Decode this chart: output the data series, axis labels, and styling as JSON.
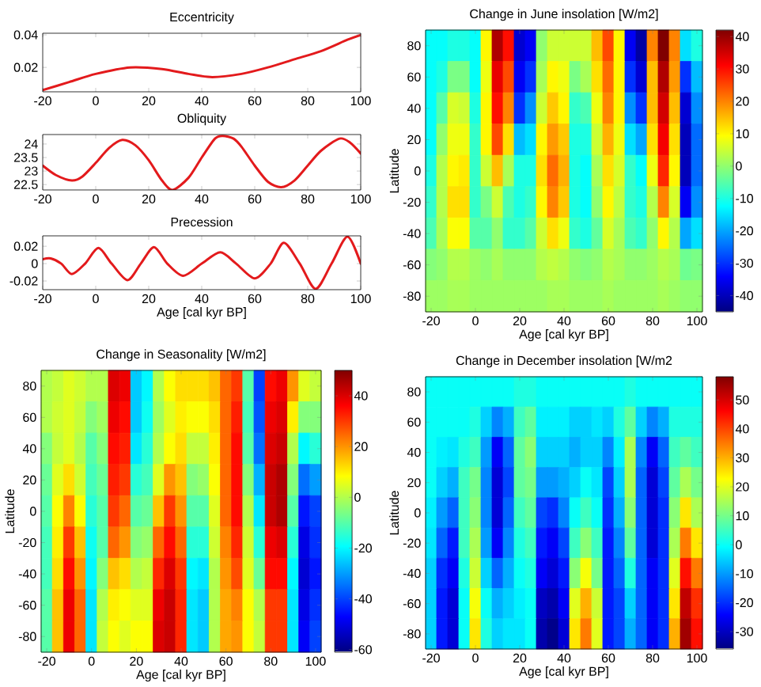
{
  "chart_data": [
    {
      "type": "line",
      "title": "Eccentricity",
      "x": [
        -20,
        -10,
        0,
        13,
        25,
        35,
        44,
        55,
        65,
        75,
        85,
        95,
        100
      ],
      "series": [
        {
          "color": "#e31a1c",
          "values": [
            0.006,
            0.011,
            0.016,
            0.02,
            0.019,
            0.016,
            0.014,
            0.016,
            0.02,
            0.025,
            0.03,
            0.037,
            0.04
          ]
        }
      ],
      "xlim": [
        -20,
        100
      ],
      "xticks": [
        -20,
        0,
        20,
        40,
        60,
        80,
        100
      ],
      "ylim": [
        0.005,
        0.041
      ],
      "yticks": [
        0.02,
        0.04
      ]
    },
    {
      "type": "line",
      "title": "Obliquity",
      "x": [
        -20,
        -15,
        -9,
        -5,
        0,
        5,
        10,
        15,
        20,
        25,
        29,
        35,
        40,
        45,
        48,
        52,
        55,
        60,
        65,
        70,
        75,
        80,
        85,
        92,
        96,
        100
      ],
      "series": [
        {
          "color": "#e31a1c",
          "values": [
            23.2,
            22.85,
            22.65,
            22.8,
            23.3,
            23.85,
            24.15,
            23.95,
            23.4,
            22.65,
            22.3,
            22.75,
            23.5,
            24.2,
            24.3,
            24.2,
            23.9,
            23.2,
            22.6,
            22.4,
            22.65,
            23.2,
            23.75,
            24.2,
            24.05,
            23.65
          ]
        }
      ],
      "xlim": [
        -20,
        100
      ],
      "xticks": [
        -20,
        0,
        20,
        40,
        60,
        80,
        100
      ],
      "ylim": [
        22.3,
        24.35
      ],
      "yticks": [
        22.5,
        23,
        23.5,
        24
      ]
    },
    {
      "type": "line",
      "title": "Precession",
      "xlabel": "Age [cal kyr BP]",
      "x": [
        -20,
        -17,
        -13,
        -9,
        -4,
        1,
        6,
        12,
        17,
        22,
        27,
        33,
        40,
        47,
        53,
        60,
        66,
        71,
        77,
        83,
        89,
        95,
        100
      ],
      "series": [
        {
          "color": "#e31a1c",
          "values": [
            0.005,
            0.006,
            0,
            -0.012,
            0,
            0.018,
            0,
            -0.019,
            0,
            0.019,
            0,
            -0.014,
            0,
            0.013,
            0,
            -0.017,
            0,
            0.024,
            0,
            -0.029,
            0,
            0.031,
            0
          ]
        }
      ],
      "xlim": [
        -20,
        100
      ],
      "xticks": [
        -20,
        0,
        20,
        40,
        60,
        80,
        100
      ],
      "ylim": [
        -0.03,
        0.032
      ],
      "yticks": [
        -0.02,
        0,
        0.02
      ]
    },
    {
      "type": "heatmap",
      "title": "Change in June insolation [W/m2]",
      "xlabel": "Age [cal kyr BP]",
      "ylabel": "Latitude",
      "categories": [
        "-20",
        null,
        null,
        null,
        "0",
        null,
        null,
        null,
        "20",
        null,
        null,
        null,
        "40",
        null,
        null,
        null,
        "60",
        null,
        null,
        null,
        "80",
        null,
        null,
        null,
        "100"
      ],
      "y_categories": [
        "80",
        "60",
        "40",
        "20",
        "0",
        "-20",
        "-40",
        "-60",
        "-80"
      ],
      "clim": [
        -45,
        42
      ],
      "cticks": [
        -40,
        -30,
        -20,
        -10,
        0,
        10,
        20,
        30,
        40
      ],
      "cells": [
        [
          -12,
          -12,
          -10,
          -10,
          -12,
          10,
          38,
          30,
          -38,
          -35,
          0,
          5,
          5,
          5,
          5,
          15,
          25,
          10,
          -35,
          -42,
          20,
          42,
          20,
          -15,
          -10
        ],
        [
          -12,
          -10,
          -2,
          -2,
          -12,
          8,
          33,
          25,
          -35,
          -30,
          2,
          10,
          8,
          -2,
          2,
          12,
          22,
          10,
          -30,
          -38,
          15,
          38,
          18,
          -30,
          -18
        ],
        [
          -12,
          -5,
          6,
          5,
          -10,
          10,
          30,
          20,
          -30,
          -22,
          5,
          14,
          10,
          -8,
          -6,
          8,
          20,
          10,
          -22,
          -30,
          15,
          35,
          15,
          -38,
          -22
        ],
        [
          -12,
          0,
          8,
          8,
          -8,
          10,
          25,
          12,
          -18,
          -15,
          10,
          18,
          14,
          -10,
          -10,
          5,
          16,
          8,
          -15,
          -20,
          12,
          32,
          12,
          -40,
          -25
        ],
        [
          -10,
          3,
          10,
          11,
          -8,
          5,
          15,
          2,
          -10,
          -10,
          12,
          22,
          16,
          -10,
          -12,
          2,
          12,
          6,
          -8,
          -12,
          8,
          28,
          10,
          -40,
          -25
        ],
        [
          -8,
          3,
          12,
          12,
          -8,
          -2,
          5,
          -6,
          -10,
          -8,
          10,
          20,
          14,
          -10,
          -12,
          0,
          10,
          4,
          -8,
          -10,
          3,
          20,
          6,
          -35,
          -22
        ],
        [
          -6,
          2,
          9,
          9,
          -5,
          -5,
          0,
          -8,
          -8,
          -5,
          5,
          12,
          8,
          -8,
          -10,
          -4,
          6,
          2,
          -6,
          -8,
          0,
          10,
          3,
          -20,
          -15
        ],
        [
          -1,
          0,
          3,
          3,
          1,
          0,
          2,
          0,
          0,
          0,
          3,
          4,
          3,
          0,
          -1,
          0,
          3,
          2,
          0,
          0,
          1,
          3,
          2,
          -3,
          -2
        ],
        [
          1,
          1,
          2,
          2,
          1,
          1,
          1,
          1,
          1,
          1,
          1,
          2,
          2,
          1,
          1,
          1,
          2,
          1,
          1,
          1,
          1,
          2,
          1,
          0,
          0
        ]
      ]
    },
    {
      "type": "heatmap",
      "title": "Change in Seasonality [W/m2]",
      "xlabel": "Age [cal kyr BP]",
      "ylabel": "Latitude",
      "categories": [
        "-20",
        null,
        null,
        null,
        "0",
        null,
        null,
        null,
        "20",
        null,
        null,
        null,
        "40",
        null,
        null,
        null,
        "60",
        null,
        null,
        null,
        "80",
        null,
        null,
        null,
        "100"
      ],
      "y_categories": [
        "80",
        "60",
        "40",
        "20",
        "0",
        "-20",
        "-40",
        "-60",
        "-80"
      ],
      "clim": [
        -61,
        50
      ],
      "cticks": [
        -60,
        -40,
        -20,
        0,
        20,
        40
      ],
      "cells": [
        [
          0,
          2,
          5,
          3,
          0,
          0,
          40,
          38,
          -25,
          -20,
          0,
          8,
          12,
          12,
          12,
          15,
          25,
          30,
          -10,
          -40,
          35,
          38,
          20,
          5,
          2
        ],
        [
          0,
          3,
          5,
          2,
          -5,
          -2,
          38,
          35,
          -25,
          -18,
          -2,
          5,
          10,
          8,
          8,
          12,
          25,
          33,
          -12,
          -38,
          38,
          40,
          10,
          -5,
          -5
        ],
        [
          -5,
          2,
          5,
          0,
          -10,
          -5,
          35,
          33,
          -22,
          -15,
          0,
          8,
          12,
          2,
          2,
          10,
          25,
          35,
          -10,
          -35,
          40,
          42,
          0,
          -20,
          -15
        ],
        [
          -8,
          5,
          12,
          3,
          -12,
          -8,
          33,
          30,
          -15,
          -12,
          5,
          20,
          15,
          -5,
          -3,
          8,
          25,
          35,
          -5,
          -28,
          42,
          45,
          -5,
          -35,
          -30
        ],
        [
          -10,
          8,
          22,
          8,
          -15,
          -10,
          30,
          25,
          -10,
          -8,
          15,
          30,
          20,
          -10,
          -10,
          5,
          25,
          35,
          0,
          -22,
          42,
          45,
          -10,
          -45,
          -40
        ],
        [
          -12,
          10,
          30,
          15,
          -18,
          -10,
          25,
          20,
          -5,
          -3,
          25,
          35,
          25,
          -15,
          -15,
          3,
          22,
          32,
          3,
          -15,
          38,
          40,
          -15,
          -50,
          -42
        ],
        [
          -12,
          12,
          35,
          20,
          -20,
          -5,
          15,
          12,
          0,
          2,
          32,
          40,
          30,
          -20,
          -22,
          0,
          20,
          28,
          5,
          -8,
          35,
          35,
          -20,
          -52,
          -45
        ],
        [
          -10,
          15,
          38,
          25,
          -22,
          0,
          10,
          8,
          5,
          5,
          38,
          42,
          32,
          -22,
          -25,
          0,
          18,
          22,
          8,
          0,
          30,
          30,
          -22,
          -50,
          -42
        ],
        [
          -10,
          15,
          38,
          25,
          -22,
          2,
          8,
          5,
          8,
          8,
          40,
          42,
          32,
          -22,
          -25,
          0,
          18,
          20,
          8,
          2,
          30,
          30,
          -22,
          -48,
          -40
        ]
      ]
    },
    {
      "type": "heatmap",
      "title": "Change in December insolation [W/m2",
      "xlabel": "Age [cal kyr BP]",
      "ylabel": "Latitude",
      "categories": [
        "-20",
        null,
        null,
        null,
        "0",
        null,
        null,
        null,
        "20",
        null,
        null,
        null,
        "40",
        null,
        null,
        null,
        "60",
        null,
        null,
        null,
        "80",
        null,
        null,
        null,
        "100"
      ],
      "y_categories": [
        "80",
        "60",
        "40",
        "20",
        "0",
        "-20",
        "-40",
        "-60",
        "-80"
      ],
      "clim": [
        -36,
        58
      ],
      "cticks": [
        -30,
        -20,
        -10,
        0,
        10,
        20,
        30,
        40,
        50
      ],
      "cells": [
        [
          0,
          0,
          0,
          0,
          0,
          0,
          0,
          0,
          2,
          2,
          0,
          0,
          0,
          0,
          0,
          0,
          0,
          0,
          2,
          0,
          0,
          0,
          0,
          0,
          0
        ],
        [
          0,
          0,
          0,
          0,
          2,
          -5,
          -12,
          -8,
          5,
          8,
          -2,
          -2,
          -2,
          -5,
          -5,
          -3,
          -5,
          2,
          8,
          -5,
          -12,
          -8,
          2,
          2,
          2
        ],
        [
          0,
          -2,
          -3,
          2,
          5,
          -10,
          -25,
          -15,
          8,
          12,
          -5,
          -5,
          -5,
          -8,
          -5,
          -5,
          -12,
          -2,
          15,
          -12,
          -25,
          -15,
          5,
          8,
          5
        ],
        [
          0,
          -5,
          -8,
          5,
          10,
          -12,
          -28,
          -18,
          8,
          10,
          -10,
          -10,
          -8,
          -5,
          0,
          -3,
          -18,
          -5,
          15,
          -15,
          -28,
          -18,
          8,
          15,
          10
        ],
        [
          -2,
          -10,
          -15,
          5,
          12,
          -12,
          -28,
          -15,
          5,
          8,
          -18,
          -20,
          -12,
          0,
          5,
          0,
          -20,
          -8,
          12,
          -15,
          -28,
          -20,
          12,
          25,
          15
        ],
        [
          -3,
          -15,
          -22,
          5,
          15,
          -10,
          -25,
          -12,
          2,
          5,
          -22,
          -25,
          -18,
          5,
          12,
          5,
          -22,
          -12,
          8,
          -15,
          -28,
          -20,
          15,
          35,
          25
        ],
        [
          -5,
          -20,
          -25,
          2,
          18,
          -5,
          -15,
          -8,
          0,
          2,
          -25,
          -28,
          -22,
          12,
          22,
          10,
          -22,
          -15,
          2,
          -15,
          -25,
          -20,
          20,
          45,
          35
        ],
        [
          -5,
          -22,
          -28,
          0,
          22,
          0,
          -8,
          -5,
          -2,
          0,
          -30,
          -32,
          -25,
          20,
          30,
          18,
          -22,
          -18,
          -5,
          -15,
          -25,
          -20,
          25,
          52,
          42
        ],
        [
          -5,
          -22,
          -28,
          0,
          25,
          2,
          -5,
          -3,
          -3,
          0,
          -32,
          -35,
          -28,
          25,
          35,
          20,
          -22,
          -18,
          -8,
          -15,
          -25,
          -20,
          30,
          55,
          45
        ]
      ]
    }
  ]
}
